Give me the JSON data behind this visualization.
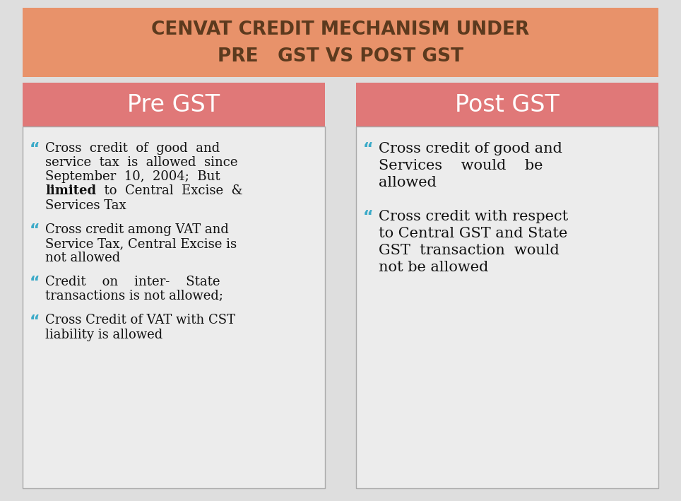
{
  "title_line1": "CENVAT CREDIT MECHANISM UNDER",
  "title_line2": "PRE   GST VS POST GST",
  "title_bg_color": "#E8926A",
  "title_text_color": "#5C3A1E",
  "header_bg_color": "#E07878",
  "header_text_color": "#FFFFFF",
  "body_bg_color": "#ECECEC",
  "body_text_color": "#111111",
  "bullet_color": "#3BAAC8",
  "outer_bg_color": "#DEDEDE",
  "panel_border_color": "#AAAAAA",
  "pre_gst_header": "Pre GST",
  "post_gst_header": "Post GST",
  "pre_gst_bullets": [
    [
      "Cross  credit  of  good  and",
      "service  tax  is  allowed  since",
      "September  10,  2004;  But",
      "BOLD limited ENDBOLD  to  Central  Excise  &",
      "Services Tax"
    ],
    [
      "Cross credit among VAT and",
      "Service Tax, Central Excise is",
      "not allowed"
    ],
    [
      "Credit    on    inter-    State",
      "transactions is not allowed;"
    ],
    [
      "Cross Credit of VAT with CST",
      "liability is allowed"
    ]
  ],
  "post_gst_bullets": [
    [
      "Cross credit of good and",
      "Services    would    be",
      "allowed"
    ],
    [
      "Cross credit with respect",
      "to Central GST and State",
      "GST  transaction  would",
      "not be allowed"
    ]
  ],
  "title_fontsize": 19,
  "header_fontsize": 24,
  "pre_body_fontsize": 13,
  "post_body_fontsize": 15,
  "bullet_fontsize": 16,
  "figsize": [
    9.64,
    7.09
  ],
  "dpi": 100
}
